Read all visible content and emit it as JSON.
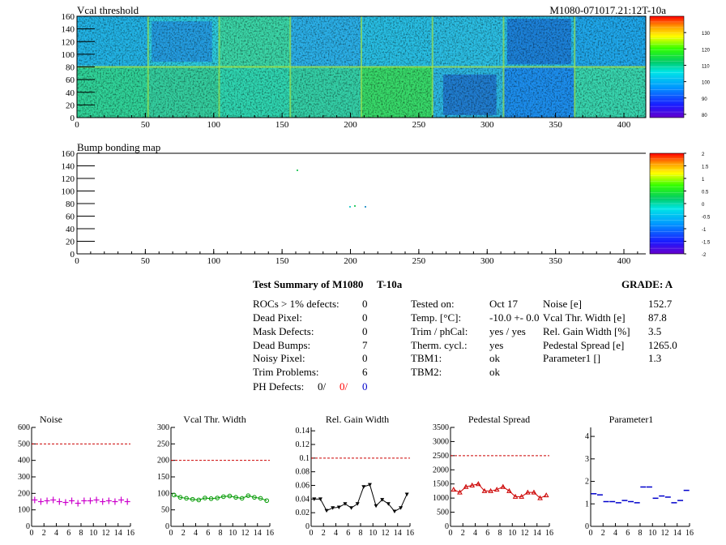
{
  "maps": [
    {
      "title": "Vcal threshold",
      "run_label": "M1080-071017.21:12T-10a",
      "x_ticks": [
        "0",
        "50",
        "100",
        "150",
        "200",
        "250",
        "300",
        "350",
        "400"
      ],
      "x_range": [
        0,
        416
      ],
      "y_ticks": [
        "0",
        "20",
        "40",
        "60",
        "80",
        "100",
        "120",
        "140",
        "160"
      ],
      "y_range": [
        0,
        160
      ],
      "z_ticks": [
        "80",
        "90",
        "100",
        "110",
        "120",
        "130"
      ],
      "z_range": [
        78,
        140
      ]
    },
    {
      "title": "Bump bonding map",
      "x_ticks": [
        "0",
        "50",
        "100",
        "150",
        "200",
        "250",
        "300",
        "350",
        "400"
      ],
      "x_range": [
        0,
        416
      ],
      "y_ticks": [
        "0",
        "20",
        "40",
        "60",
        "80",
        "100",
        "120",
        "140",
        "160"
      ],
      "y_range": [
        0,
        160
      ],
      "z_ticks": [
        "-2",
        "-1.5",
        "-1",
        "-0.5",
        "0",
        "0.5",
        "1",
        "1.5",
        "2"
      ],
      "z_range": [
        -2,
        2
      ]
    }
  ],
  "summary": {
    "title": "Test Summary of M1080",
    "temp_tag": "T-10a",
    "grade": "GRADE:  A",
    "defects": [
      {
        "label": "ROCs > 1% defects:",
        "value": "0"
      },
      {
        "label": "Dead Pixel:",
        "value": "0"
      },
      {
        "label": "Mask Defects:",
        "value": "0"
      },
      {
        "label": "Dead Bumps:",
        "value": "7"
      },
      {
        "label": "Noisy Pixel:",
        "value": "0"
      },
      {
        "label": "Trim Problems:",
        "value": "6"
      }
    ],
    "ph_defects": {
      "label": "PH Defects:",
      "v1": "0/",
      "v2": "0/",
      "v3": "0",
      "v2_color": "#ff0000",
      "v3_color": "#0000cc"
    },
    "conditions": [
      {
        "label": "Tested on:",
        "value": "Oct 17"
      },
      {
        "label": "Temp. [°C]:",
        "value": "-10.0 +- 0.0"
      },
      {
        "label": "Trim / phCal:",
        "value": "yes / yes"
      },
      {
        "label": "Therm. cycl.:",
        "value": "yes"
      },
      {
        "label": "TBM1:",
        "value": "ok"
      },
      {
        "label": "TBM2:",
        "value": "ok"
      }
    ],
    "results": [
      {
        "label": "Noise [e]",
        "value": "152.7"
      },
      {
        "label": "Vcal Thr. Width [e]",
        "value": "87.8"
      },
      {
        "label": "Rel. Gain Width [%]",
        "value": "3.5"
      },
      {
        "label": "Pedestal Spread [e]",
        "value": "1265.0"
      },
      {
        "label": "Parameter1 []",
        "value": "1.3"
      }
    ]
  },
  "chart_data": [
    {
      "type": "scatter",
      "title": "Noise",
      "marker": "cross",
      "color": "#cc00cc",
      "x": [
        0,
        1,
        2,
        3,
        4,
        5,
        6,
        7,
        8,
        9,
        10,
        11,
        12,
        13,
        14,
        15
      ],
      "values": [
        160,
        150,
        155,
        160,
        150,
        145,
        155,
        140,
        155,
        155,
        160,
        150,
        155,
        150,
        160,
        150
      ],
      "ylim": [
        0,
        600
      ],
      "limit": 500,
      "y_ticks": [
        "0",
        "100",
        "200",
        "300",
        "400",
        "500",
        "600"
      ],
      "x_ticks": [
        "0",
        "2",
        "4",
        "6",
        "8",
        "10",
        "12",
        "14",
        "16"
      ]
    },
    {
      "type": "line",
      "title": "Vcal Thr. Width",
      "marker": "circle",
      "color": "#009900",
      "x": [
        0,
        1,
        2,
        3,
        4,
        5,
        6,
        7,
        8,
        9,
        10,
        11,
        12,
        13,
        14,
        15
      ],
      "values": [
        95,
        88,
        85,
        82,
        80,
        86,
        84,
        86,
        90,
        92,
        88,
        85,
        93,
        88,
        85,
        78
      ],
      "ylim": [
        0,
        300
      ],
      "limit": 200,
      "y_ticks": [
        "0",
        "50",
        "100",
        "150",
        "200",
        "250",
        "300"
      ],
      "x_ticks": [
        "0",
        "2",
        "4",
        "6",
        "8",
        "10",
        "12",
        "14",
        "16"
      ]
    },
    {
      "type": "line",
      "title": "Rel. Gain Width",
      "marker": "triangle-down",
      "color": "#000000",
      "x": [
        0,
        1,
        2,
        3,
        4,
        5,
        6,
        7,
        8,
        9,
        10,
        11,
        12,
        13,
        14,
        15
      ],
      "values": [
        0.04,
        0.04,
        0.023,
        0.027,
        0.028,
        0.033,
        0.027,
        0.033,
        0.058,
        0.061,
        0.03,
        0.039,
        0.033,
        0.022,
        0.027,
        0.047
      ],
      "ylim": [
        0,
        0.145
      ],
      "limit": 0.1,
      "y_ticks": [
        "0",
        "0.02",
        "0.04",
        "0.06",
        "0.08",
        "0.1",
        "0.12",
        "0.14"
      ],
      "x_ticks": [
        "0",
        "2",
        "4",
        "6",
        "8",
        "10",
        "12",
        "14",
        "16"
      ]
    },
    {
      "type": "line",
      "title": "Pedestal Spread",
      "marker": "triangle-up",
      "color": "#cc0000",
      "x": [
        0,
        1,
        2,
        3,
        4,
        5,
        6,
        7,
        8,
        9,
        10,
        11,
        12,
        13,
        14,
        15
      ],
      "values": [
        1300,
        1200,
        1400,
        1450,
        1500,
        1250,
        1250,
        1300,
        1400,
        1250,
        1050,
        1050,
        1200,
        1200,
        1000,
        1100
      ],
      "ylim": [
        0,
        3500
      ],
      "limit": 2500,
      "y_ticks": [
        "0",
        "500",
        "1000",
        "1500",
        "2000",
        "2500",
        "3000",
        "3500"
      ],
      "x_ticks": [
        "0",
        "2",
        "4",
        "6",
        "8",
        "10",
        "12",
        "14",
        "16"
      ]
    },
    {
      "type": "scatter",
      "title": "Parameter1",
      "marker": "hbar",
      "color": "#0000cc",
      "x": [
        0,
        1,
        2,
        3,
        4,
        5,
        6,
        7,
        8,
        9,
        10,
        11,
        12,
        13,
        14,
        15
      ],
      "values": [
        1.45,
        1.4,
        1.1,
        1.1,
        1.05,
        1.15,
        1.1,
        1.05,
        1.75,
        1.75,
        1.25,
        1.35,
        1.3,
        1.05,
        1.15,
        1.6
      ],
      "ylim": [
        0,
        4.4
      ],
      "y_ticks": [
        "0",
        "1",
        "2",
        "3",
        "4"
      ],
      "x_ticks": [
        "0",
        "2",
        "4",
        "6",
        "8",
        "10",
        "12",
        "14",
        "16"
      ]
    }
  ]
}
